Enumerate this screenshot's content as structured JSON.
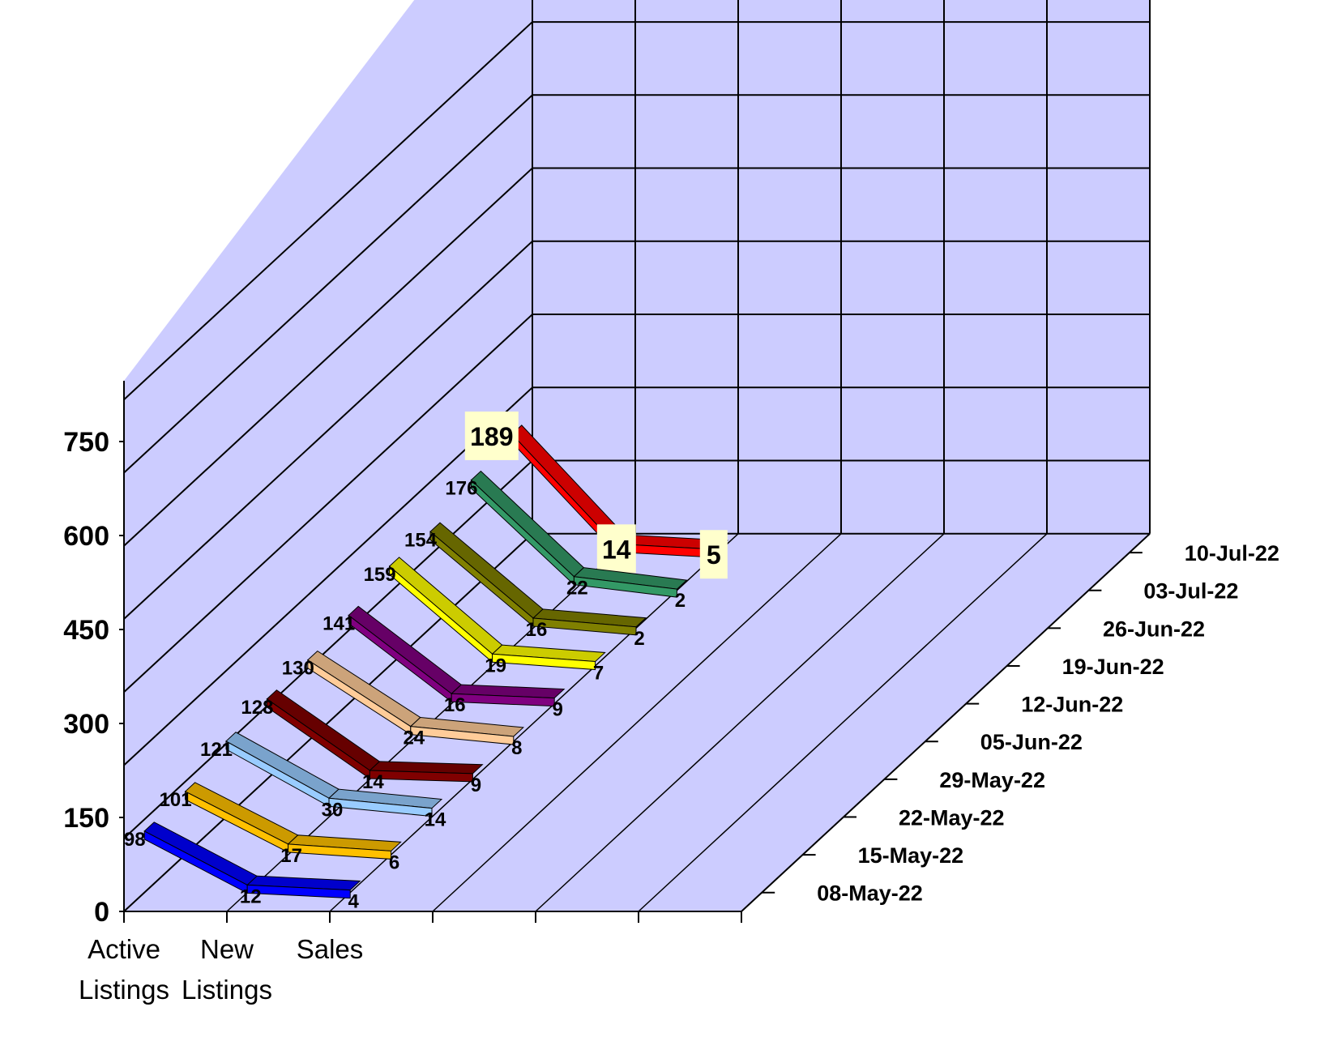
{
  "chart_data": {
    "type": "line",
    "title": "",
    "subtitle": "",
    "xlabel": "",
    "ylabel": "",
    "ylim": [
      0,
      750
    ],
    "yticks": [
      "0",
      "150",
      "300",
      "450",
      "600",
      "750"
    ],
    "categories": [
      "Active Listings",
      "New Listings",
      "Sales"
    ],
    "category_lines": [
      [
        "Active",
        "Listings"
      ],
      [
        "New",
        "Listings"
      ],
      [
        "Sales",
        ""
      ]
    ],
    "grid": true,
    "three_d": true,
    "series": [
      {
        "name": "08-May-22",
        "values": [
          98,
          12,
          4
        ],
        "color": "#0000FF"
      },
      {
        "name": "15-May-22",
        "values": [
          101,
          17,
          6
        ],
        "color": "#FFC000"
      },
      {
        "name": "22-May-22",
        "values": [
          121,
          30,
          14
        ],
        "color": "#99CCFF"
      },
      {
        "name": "29-May-22",
        "values": [
          128,
          14,
          9
        ],
        "color": "#800000"
      },
      {
        "name": "05-Jun-22",
        "values": [
          130,
          24,
          8
        ],
        "color": "#FFCC99"
      },
      {
        "name": "12-Jun-22",
        "values": [
          141,
          16,
          9
        ],
        "color": "#800080"
      },
      {
        "name": "19-Jun-22",
        "values": [
          159,
          19,
          7
        ],
        "color": "#FFFF00"
      },
      {
        "name": "26-Jun-22",
        "values": [
          154,
          16,
          2
        ],
        "color": "#808000"
      },
      {
        "name": "03-Jul-22",
        "values": [
          176,
          22,
          2
        ],
        "color": "#339966"
      },
      {
        "name": "10-Jul-22",
        "values": [
          189,
          14,
          5
        ],
        "color": "#FF0000"
      }
    ],
    "highlight_series": "10-Jul-22",
    "colors": {
      "wall": "#CCCCFF",
      "gridline": "#000000",
      "label_box": "#FFFFCC"
    }
  }
}
